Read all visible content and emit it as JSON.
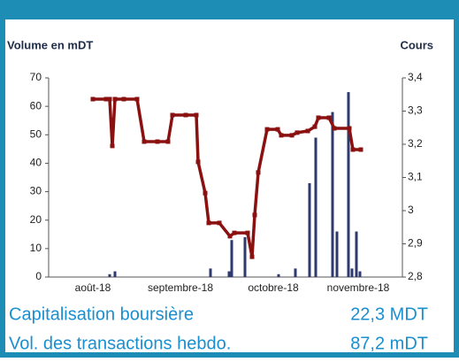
{
  "chart_data": {
    "type": "bar-line",
    "y_label": "Volume en mDT",
    "y2_label": "Cours",
    "xlim": [
      0,
      100
    ],
    "xticks": [
      {
        "value": 12.5,
        "label": "août-18"
      },
      {
        "value": 37.25,
        "label": "septembre-18"
      },
      {
        "value": 63.5,
        "label": "octobre-18"
      },
      {
        "value": 87.5,
        "label": "novembre-18"
      }
    ],
    "ylim": [
      0,
      70
    ],
    "yticks": [
      0,
      10,
      20,
      30,
      40,
      50,
      60,
      70
    ],
    "y2lim": [
      2.8,
      3.4
    ],
    "y2ticks": [
      {
        "value": 2.8,
        "label": "2,8"
      },
      {
        "value": 2.9,
        "label": "2,9"
      },
      3,
      {
        "value": 3.1,
        "label": "3,1"
      },
      {
        "value": 3.2,
        "label": "3,2"
      },
      {
        "value": 3.3,
        "label": "3,3"
      },
      {
        "value": 3.4,
        "label": "3,4"
      }
    ],
    "series": [
      {
        "type": "bar",
        "color": "#2e3a6e",
        "x": [
          17.25,
          18.75,
          45.75,
          51,
          51.75,
          55.5,
          65,
          69.75,
          73.75,
          75.5,
          80.25,
          81.5,
          84.75,
          85.75,
          87,
          88
        ],
        "values": [
          1,
          2,
          3,
          2,
          13,
          14,
          1,
          3,
          33,
          49,
          58,
          16,
          65,
          3,
          16,
          2
        ]
      },
      {
        "type": "line",
        "color": "#8b1010",
        "axis": "y2",
        "x": [
          12.5,
          16.25,
          17.25,
          18,
          18.75,
          21.25,
          25,
          27,
          30.75,
          33.75,
          35,
          38.75,
          41.75,
          42.25,
          44.25,
          45.25,
          48.25,
          51.25,
          52.5,
          56.25,
          57.5,
          58.25,
          59.25,
          61.75,
          64.75,
          65.75,
          68.75,
          70.25,
          73.25,
          75.25,
          76.25,
          79.25,
          80.75,
          85,
          86,
          88.25
        ],
        "values": [
          3.336,
          3.336,
          3.336,
          3.195,
          3.336,
          3.336,
          3.336,
          3.208,
          3.208,
          3.208,
          3.288,
          3.288,
          3.288,
          3.147,
          3.053,
          2.963,
          2.963,
          2.923,
          2.933,
          2.933,
          2.861,
          2.987,
          3.115,
          3.245,
          3.245,
          3.227,
          3.227,
          3.235,
          3.24,
          3.253,
          3.28,
          3.28,
          3.248,
          3.248,
          3.184,
          3.184
        ]
      }
    ]
  },
  "stats": [
    {
      "label": "Capitalisation boursière",
      "value": "22,3 MDT"
    },
    {
      "label": "Vol. des transactions hebdo.",
      "value": "87,2 mDT"
    }
  ]
}
